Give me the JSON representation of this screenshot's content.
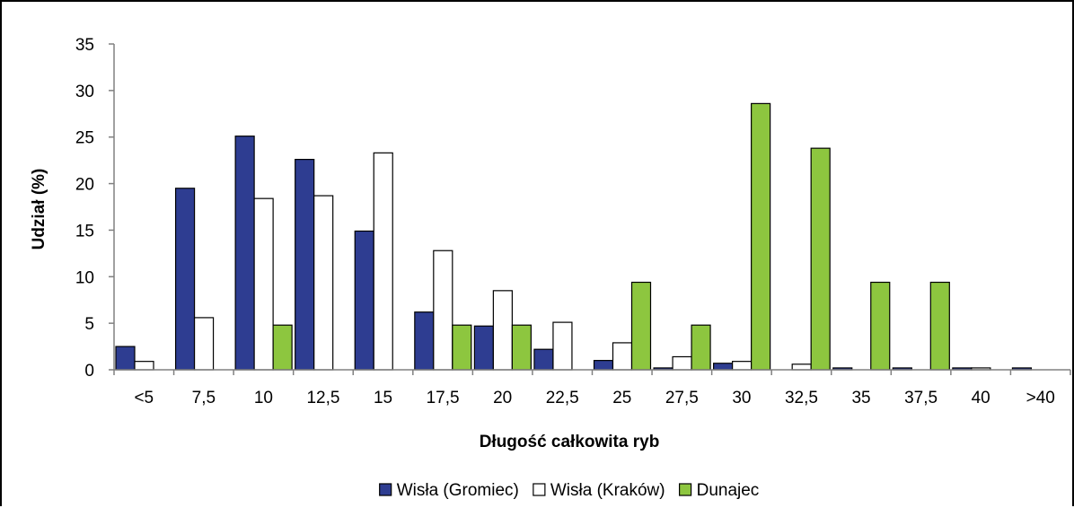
{
  "chart_data": {
    "type": "bar",
    "title": "",
    "xlabel": "Długość całkowita ryb",
    "ylabel": "Udział (%)",
    "ylim": [
      0,
      35
    ],
    "yticks": [
      "0",
      "5",
      "10",
      "15",
      "20",
      "25",
      "30",
      "35"
    ],
    "categories": [
      "<5",
      "7,5",
      "10",
      "12,5",
      "15",
      "17,5",
      "20",
      "22,5",
      "25",
      "27,5",
      "30",
      "32,5",
      "35",
      "37,5",
      "40",
      ">40"
    ],
    "grid": false,
    "legend_position": "bottom",
    "series": [
      {
        "name": "Wisła (Gromiec)",
        "color": "#2E3D91",
        "values": [
          2.5,
          19.5,
          25.1,
          22.6,
          14.9,
          6.2,
          4.7,
          2.2,
          1.0,
          0.2,
          0.7,
          0,
          0.2,
          0.2,
          0.2,
          0.2
        ]
      },
      {
        "name": "Wisła (Kraków)",
        "color": "#FFFFFF",
        "values": [
          0.9,
          5.6,
          18.4,
          18.7,
          23.3,
          12.8,
          8.5,
          5.1,
          2.9,
          1.4,
          0.9,
          0.6,
          0,
          0,
          0.2,
          0
        ]
      },
      {
        "name": "Dunajec",
        "color": "#8DC63F",
        "values": [
          0,
          0,
          4.8,
          0,
          0,
          4.8,
          4.8,
          0,
          9.4,
          4.8,
          28.6,
          23.8,
          9.4,
          9.4,
          0,
          0
        ]
      }
    ]
  }
}
